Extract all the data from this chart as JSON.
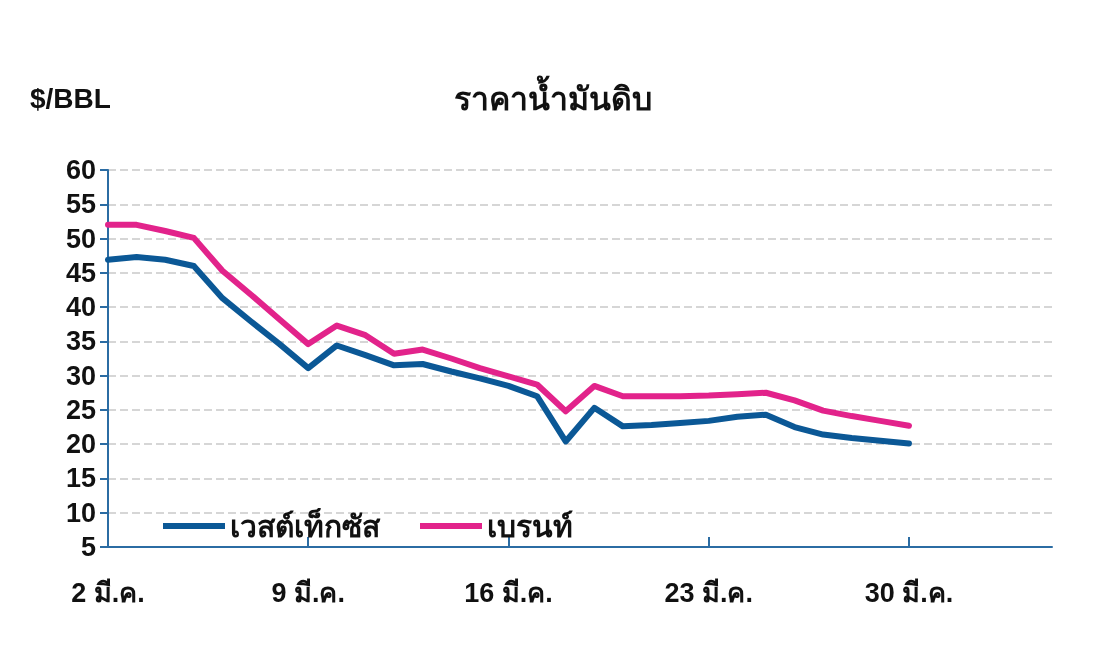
{
  "chart_data": {
    "type": "line",
    "title": "ราคาน้ำมันดิบ",
    "ylabel": "$/BBL",
    "x": [
      "--03-02",
      "--03-03",
      "--03-04",
      "--03-05",
      "--03-06",
      "--03-07",
      "--03-08",
      "--03-09",
      "--03-10",
      "--03-11",
      "--03-12",
      "--03-13",
      "--03-14",
      "--03-15",
      "--03-16",
      "--03-17",
      "--03-18",
      "--03-19",
      "--03-20",
      "--03-21",
      "--03-22",
      "--03-23",
      "--03-24",
      "--03-25",
      "--03-26",
      "--03-27",
      "--03-28",
      "--03-29",
      "--03-30"
    ],
    "series": [
      {
        "name": "เวสต์เท็กซัส",
        "color": "#0b5896",
        "values": [
          46.9,
          47.3,
          46.9,
          46.0,
          41.3,
          37.9,
          34.6,
          31.1,
          34.4,
          33.0,
          31.5,
          31.7,
          30.6,
          29.6,
          28.5,
          27.0,
          20.4,
          25.3,
          22.6,
          22.8,
          23.1,
          23.4,
          24.0,
          24.3,
          22.5,
          21.4,
          20.9,
          20.5,
          20.1
        ]
      },
      {
        "name": "เบรนท์",
        "color": "#e2238b",
        "values": [
          52.0,
          52.0,
          51.1,
          50.1,
          45.3,
          41.8,
          38.2,
          34.6,
          37.3,
          35.9,
          33.2,
          33.8,
          32.5,
          31.1,
          29.9,
          28.7,
          24.8,
          28.5,
          27.0,
          27.0,
          27.0,
          27.1,
          27.3,
          27.5,
          26.4,
          24.9,
          24.1,
          23.4,
          22.7
        ]
      }
    ],
    "xlim": [
      "--03-02",
      "--04-04"
    ],
    "xticks": [
      {
        "value": "--03-02",
        "label": "2 มี.ค."
      },
      {
        "value": "--03-09",
        "label": "9 มี.ค."
      },
      {
        "value": "--03-16",
        "label": "16 มี.ค."
      },
      {
        "value": "--03-23",
        "label": "23 มี.ค."
      },
      {
        "value": "--03-30",
        "label": "30 มี.ค."
      }
    ],
    "ylim": [
      5,
      60
    ],
    "yticks": [
      5,
      10,
      15,
      20,
      25,
      30,
      35,
      40,
      45,
      50,
      55,
      60
    ],
    "grid": "y",
    "legend": "bottom left",
    "marker": "none",
    "line_style": "solid"
  }
}
